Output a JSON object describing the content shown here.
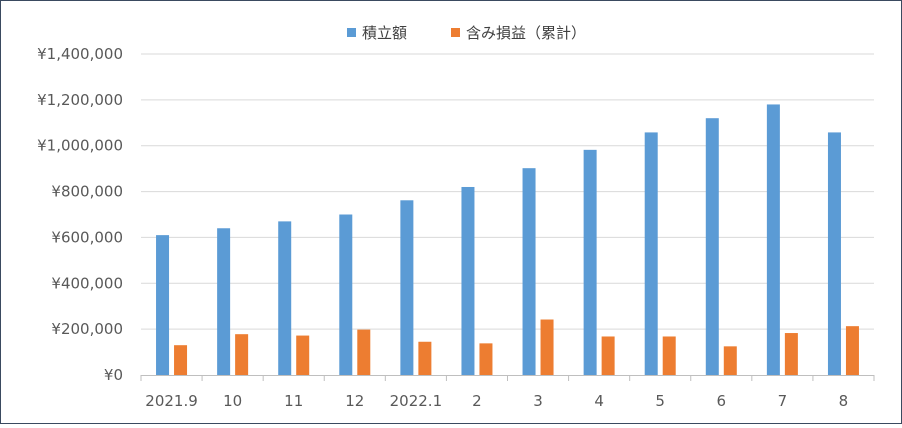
{
  "chart_data": {
    "type": "bar",
    "categories": [
      "2021.9",
      "10",
      "11",
      "12",
      "2022.1",
      "2",
      "3",
      "4",
      "5",
      "6",
      "7",
      "8"
    ],
    "series": [
      {
        "name": "積立額",
        "color": "#5b9bd5",
        "values": [
          610000,
          640000,
          670000,
          700000,
          762000,
          820000,
          902000,
          982000,
          1058000,
          1120000,
          1180000,
          1058000
        ]
      },
      {
        "name": "含み損益（累計）",
        "color": "#ed7d31",
        "values": [
          130000,
          178000,
          172000,
          198000,
          145000,
          138000,
          242000,
          168000,
          168000,
          125000,
          183000,
          213000
        ]
      }
    ],
    "y_ticks": [
      "¥0",
      "¥200,000",
      "¥400,000",
      "¥600,000",
      "¥800,000",
      "¥1,000,000",
      "¥1,200,000",
      "¥1,400,000"
    ],
    "ylim": [
      0,
      1400000
    ],
    "grid": true,
    "legend_position": "top-center"
  }
}
